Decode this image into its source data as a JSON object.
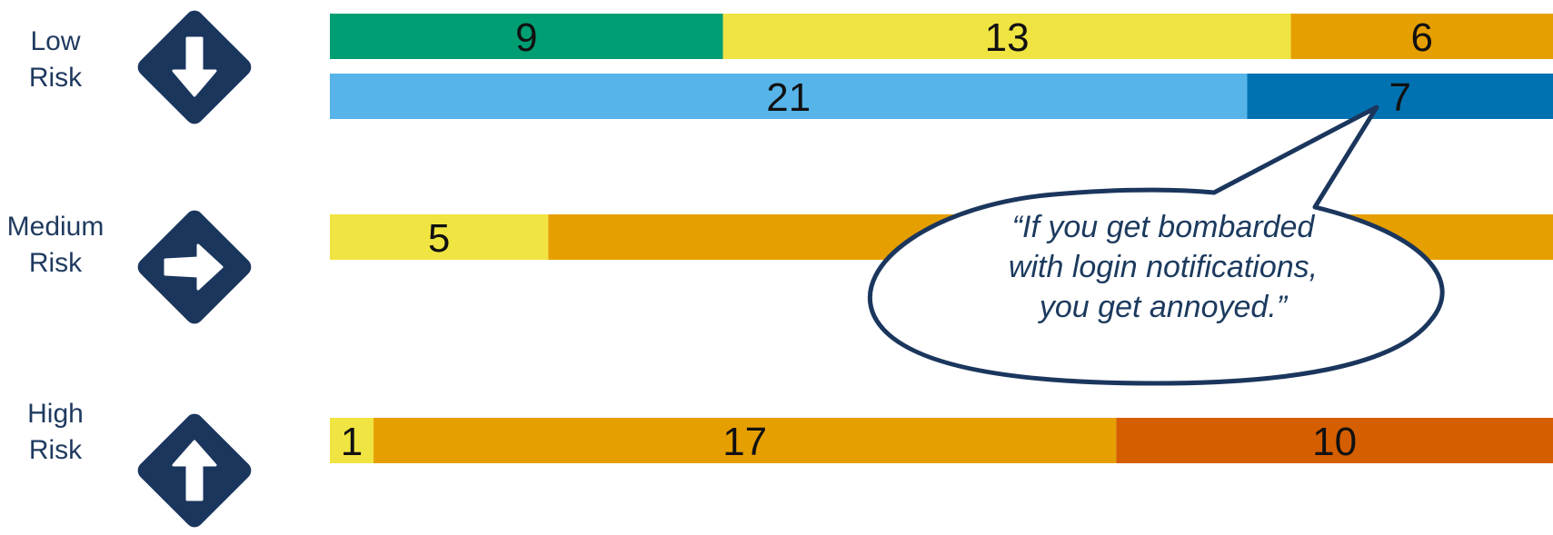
{
  "rows": [
    {
      "label_line1": "Low",
      "label_line2": "Risk",
      "icon": "arrow-down-icon"
    },
    {
      "label_line1": "Medium",
      "label_line2": "Risk",
      "icon": "arrow-right-icon"
    },
    {
      "label_line1": "High",
      "label_line2": "Risk",
      "icon": "arrow-up-icon"
    }
  ],
  "quote": {
    "line1": "“If you get bombarded",
    "line2": "with login notifications,",
    "line3": "you get annoyed.”"
  },
  "colors": {
    "icon": "#1b365d",
    "callout_border": "#1b365d",
    "text": "#1f3a5f"
  },
  "chart_data": {
    "type": "bar",
    "orientation": "horizontal",
    "stacked": true,
    "xlim": [
      0,
      28
    ],
    "bars": [
      {
        "row": "Low Risk",
        "segments": [
          {
            "value": 9,
            "color": "#009e73"
          },
          {
            "value": 13,
            "color": "#f0e442"
          },
          {
            "value": 6,
            "color": "#e69f00"
          }
        ]
      },
      {
        "row": "Low Risk",
        "segments": [
          {
            "value": 21,
            "color": "#56b4e9"
          },
          {
            "value": 7,
            "color": "#0072b2"
          }
        ]
      },
      {
        "row": "Medium Risk",
        "segments": [
          {
            "value": 5,
            "color": "#f0e442"
          },
          {
            "value": 23,
            "color": "#e69f00",
            "label": ""
          }
        ]
      },
      {
        "row": "High Risk",
        "segments": [
          {
            "value": 1,
            "color": "#f0e442"
          },
          {
            "value": 17,
            "color": "#e69f00"
          },
          {
            "value": 10,
            "color": "#d55e00"
          }
        ]
      }
    ]
  }
}
